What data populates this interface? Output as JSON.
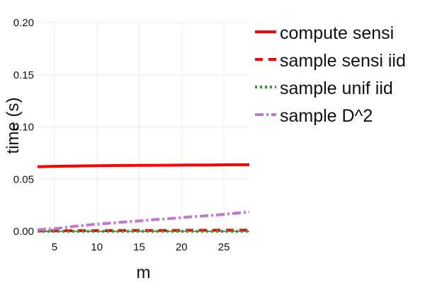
{
  "chart_data": {
    "type": "line",
    "xlabel": "m",
    "ylabel": "time (s)",
    "xlim": [
      3,
      28
    ],
    "ylim": [
      0,
      0.2
    ],
    "xticks": [
      5,
      10,
      15,
      20,
      25
    ],
    "xtick_labels": [
      "5",
      "10",
      "15",
      "20",
      "25"
    ],
    "yticks": [
      0,
      0.05,
      0.1,
      0.15,
      0.2
    ],
    "ytick_labels": [
      "0.00",
      "0.05",
      "0.10",
      "0.15",
      "0.20"
    ],
    "grid": true,
    "legend_position": "right",
    "x": [
      3,
      5,
      7,
      9,
      11,
      13,
      15,
      17,
      19,
      21,
      23,
      25,
      27,
      28
    ],
    "series": [
      {
        "name": "compute sensi",
        "color": "#ff0000",
        "style": "solid",
        "values": [
          0.062,
          0.0623,
          0.0626,
          0.0628,
          0.063,
          0.0631,
          0.0632,
          0.0633,
          0.0634,
          0.0635,
          0.0636,
          0.0637,
          0.0638,
          0.0638
        ]
      },
      {
        "name": "sample sensi iid",
        "color": "#ff0000",
        "style": "dash",
        "values": [
          0.0004,
          0.0005,
          0.0006,
          0.0007,
          0.0007,
          0.0008,
          0.0008,
          0.0009,
          0.0009,
          0.001,
          0.001,
          0.0011,
          0.0011,
          0.0011
        ]
      },
      {
        "name": "sample unif iid",
        "color": "#2ca02c",
        "style": "dot",
        "values": [
          0.0001,
          0.0001,
          0.0001,
          0.0001,
          0.0001,
          0.0001,
          0.0001,
          0.0001,
          0.0001,
          0.0001,
          0.0001,
          0.0001,
          0.0001,
          0.0001
        ]
      },
      {
        "name": "sample D^2",
        "color": "#c377d2",
        "style": "dashdot",
        "values": [
          0.0015,
          0.0025,
          0.0045,
          0.0062,
          0.0075,
          0.0088,
          0.01,
          0.0113,
          0.0125,
          0.0138,
          0.015,
          0.0163,
          0.0178,
          0.0185
        ]
      }
    ]
  }
}
